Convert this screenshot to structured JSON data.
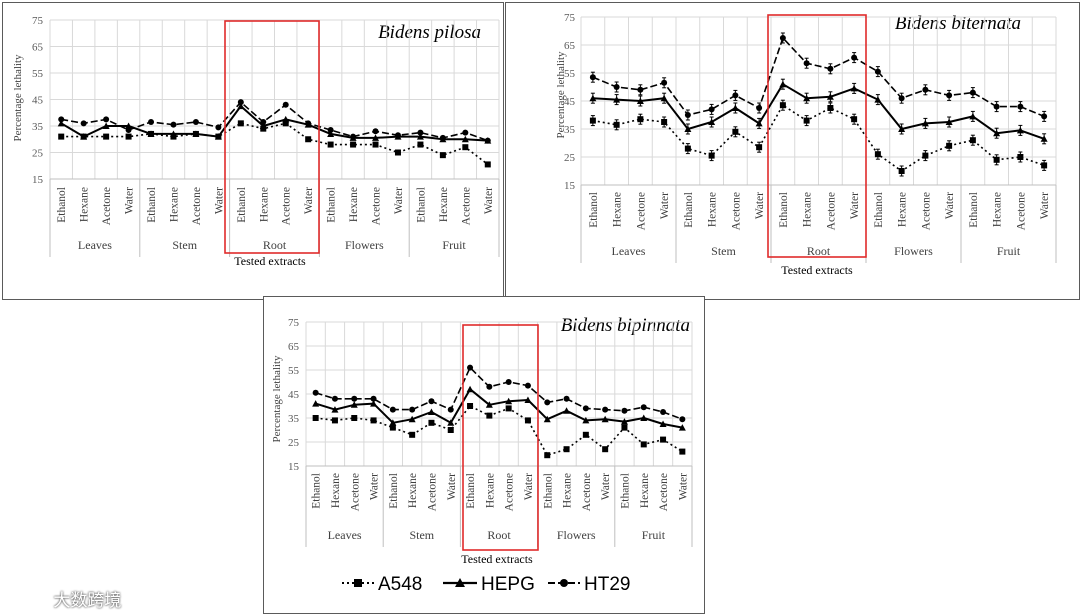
{
  "chart_data": [
    {
      "type": "line",
      "title": "Bidens pilosa",
      "xlabel": "Tested extracts",
      "ylabel": "Percentage lethality",
      "ylim": [
        15,
        75
      ],
      "yticks": [
        15,
        25,
        35,
        45,
        55,
        65,
        75
      ],
      "groups": [
        "Leaves",
        "Stem",
        "Root",
        "Flowers",
        "Fruit"
      ],
      "categories": [
        "Ethanol",
        "Hexane",
        "Acetone",
        "Water",
        "Ethanol",
        "Hexane",
        "Acetone",
        "Water",
        "Ethanol",
        "Hexane",
        "Acetone",
        "Water",
        "Ethanol",
        "Hexane",
        "Acetone",
        "Water",
        "Ethanol",
        "Hexane",
        "Acetone",
        "Water"
      ],
      "highlight_group": "Root",
      "series": [
        {
          "name": "A548",
          "values": [
            31,
            31,
            31,
            31,
            32,
            31,
            32,
            31,
            36,
            34,
            36,
            30,
            28,
            28,
            28,
            25,
            28,
            24,
            27,
            20.5
          ]
        },
        {
          "name": "HEPG",
          "values": [
            36,
            31,
            35,
            35,
            32,
            32,
            32,
            31,
            42.5,
            35,
            37.5,
            35.5,
            32,
            30.5,
            30.5,
            31,
            31,
            30,
            30,
            29.5
          ]
        },
        {
          "name": "HT29",
          "values": [
            37.5,
            36,
            37.5,
            33.5,
            36.5,
            35.5,
            36.5,
            34.5,
            44,
            36.5,
            43,
            36,
            33.5,
            31,
            33,
            31.5,
            32.5,
            30.5,
            32.5,
            29.5
          ]
        }
      ]
    },
    {
      "type": "line",
      "title": "Bidens biternata",
      "xlabel": "Tested extracts",
      "ylabel": "Percentage lethality",
      "ylim": [
        15,
        75
      ],
      "yticks": [
        15,
        25,
        35,
        45,
        55,
        65,
        75
      ],
      "groups": [
        "Leaves",
        "Stem",
        "Root",
        "Flowers",
        "Fruit"
      ],
      "categories": [
        "Ethanol",
        "Hexane",
        "Acetone",
        "Water",
        "Ethanol",
        "Hexane",
        "Acetone",
        "Water",
        "Ethanol",
        "Hexane",
        "Acetone",
        "Water",
        "Ethanol",
        "Hexane",
        "Acetone",
        "Water",
        "Ethanol",
        "Hexane",
        "Acetone",
        "Water"
      ],
      "highlight_group": "Root",
      "series": [
        {
          "name": "A548",
          "values": [
            38,
            36.5,
            38.5,
            37.5,
            28,
            25.5,
            34,
            28.5,
            43.5,
            38,
            42.5,
            38.5,
            26,
            20,
            25.5,
            29,
            31,
            24,
            25,
            22
          ]
        },
        {
          "name": "HEPG",
          "values": [
            46,
            45.5,
            45,
            46,
            35,
            37.5,
            42.5,
            37,
            51,
            46,
            46.5,
            49.5,
            45.5,
            35,
            37,
            37.5,
            39.5,
            33.5,
            34.5,
            31.5
          ]
        },
        {
          "name": "HT29",
          "values": [
            53.5,
            50,
            49,
            51.5,
            40,
            42,
            47,
            42.5,
            67.5,
            58.5,
            56.5,
            60.5,
            55.5,
            46,
            49,
            47,
            48,
            43,
            43,
            39.5
          ]
        }
      ]
    },
    {
      "type": "line",
      "title": "Bidens bipinnata",
      "xlabel": "Tested extracts",
      "ylabel": "Percentage lethality",
      "ylim": [
        15,
        75
      ],
      "yticks": [
        15,
        25,
        35,
        45,
        55,
        65,
        75
      ],
      "groups": [
        "Leaves",
        "Stem",
        "Root",
        "Flowers",
        "Fruit"
      ],
      "categories": [
        "Ethanol",
        "Hexane",
        "Acetone",
        "Water",
        "Ethanol",
        "Hexane",
        "Acetone",
        "Water",
        "Ethanol",
        "Hexane",
        "Acetone",
        "Water",
        "Ethanol",
        "Hexane",
        "Acetone",
        "Water",
        "Ethanol",
        "Hexane",
        "Acetone",
        "Water"
      ],
      "highlight_group": "Root",
      "series": [
        {
          "name": "A548",
          "values": [
            35,
            34,
            35,
            34,
            31,
            28,
            33,
            30,
            40,
            36,
            39,
            34,
            19.5,
            22,
            28,
            22,
            31,
            24,
            26,
            21
          ]
        },
        {
          "name": "HEPG",
          "values": [
            41,
            38.5,
            40.5,
            41,
            33,
            34.5,
            37.5,
            33,
            47,
            40.5,
            42,
            42.5,
            34.5,
            38,
            34,
            34.5,
            33.5,
            35,
            32.5,
            31
          ]
        },
        {
          "name": "HT29",
          "values": [
            45.5,
            43,
            43,
            43,
            38.5,
            38.5,
            42,
            38.5,
            56,
            48,
            50,
            48.5,
            41.5,
            43,
            39,
            38.5,
            38,
            39.5,
            37.5,
            34.5
          ]
        }
      ]
    }
  ],
  "legend": {
    "items": [
      "A548",
      "HEPG",
      "HT29"
    ]
  },
  "watermark": {
    "text": "大数跨境"
  },
  "colors": {
    "line": "#000000",
    "grid": "#d9d9d9",
    "highlight": "#e02b2b",
    "axis_text": "#595959"
  }
}
